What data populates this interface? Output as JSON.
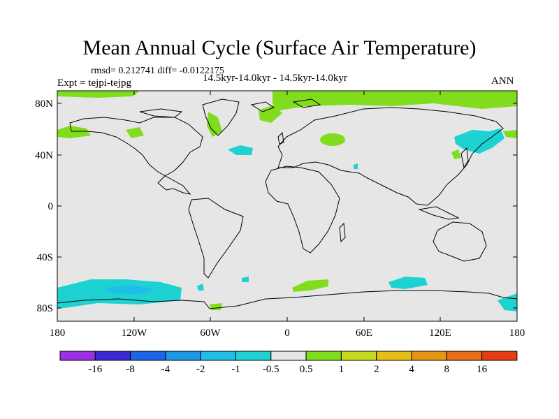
{
  "title": "Mean Annual Cycle (Surface Air Temperature)",
  "stats_text": "rmsd= 0.212741 diff= -0.0122175",
  "expt_text": "Expt = tejpi-tejpg",
  "period_text": "14.5kyr-14.0kyr - 14.5kyr-14.0kyr",
  "season_label": "ANN",
  "map": {
    "background_color": "#e6e6e6",
    "lat_ticks": [
      "80N",
      "40N",
      "0",
      "40S",
      "80S"
    ],
    "lon_ticks": [
      "180",
      "120W",
      "60W",
      "0",
      "60E",
      "120E",
      "180"
    ]
  },
  "colorbar": {
    "colors": [
      "#9b30e6",
      "#3c28d2",
      "#1e64e6",
      "#1e96e6",
      "#1ebee6",
      "#1ed2d2",
      "#e6e6e6",
      "#82dc1e",
      "#c8dc1e",
      "#e6be14",
      "#e69614",
      "#e66e14",
      "#e63c14"
    ],
    "labels": [
      "-16",
      "-8",
      "-4",
      "-2",
      "-1",
      "-0.5",
      "0.5",
      "1",
      "2",
      "4",
      "8",
      "16"
    ]
  },
  "anomaly_colors": {
    "cyan": "#1ed2d2",
    "blue": "#1ebee6",
    "green": "#82dc1e"
  }
}
